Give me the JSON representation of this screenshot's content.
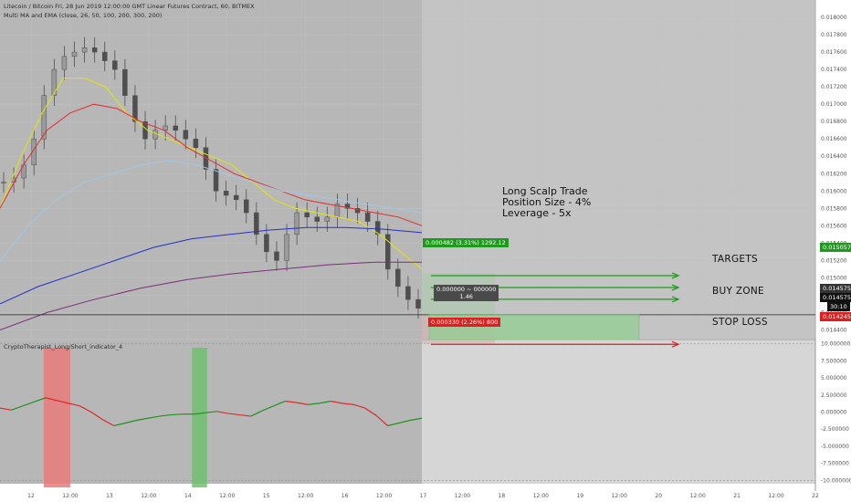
{
  "header": {
    "title": "Litecoin / Bitcoin Fri, 28 Jun 2019 12:00:00 GMT Linear Futures Contract, 60, BITMEX",
    "indicator": "Multi MA and EMA (close, 26, 50, 100, 200, 300, 200)",
    "sub_indicator": "CryptoTherapist_Long/Short_indicator_4"
  },
  "annotation": {
    "line1": "Long Scalp Trade",
    "line2": "Position Size - 4%",
    "line3": "Leverage - 5x"
  },
  "zones": {
    "targets": "TARGETS",
    "buy": "BUY ZONE",
    "stop": "STOP LOSS"
  },
  "tool_labels": {
    "profit": "0.000482 (3.31%) 1292.12",
    "center_line1": "0.000000 ~ 000000",
    "center_line2": "1.46",
    "loss": "0.000330 (2.26%) 800"
  },
  "price_tags": {
    "target": "0.015057",
    "current": "0.014575",
    "current2": "0.014575",
    "time": "30:10",
    "stop": "0.014245"
  },
  "colors": {
    "background": "#ffffff",
    "grid": "#ececec",
    "shade_past": "#b7b7b7",
    "shade_future": "#c4c4c4",
    "profit": "#1f9a1f",
    "loss": "#e01e1e",
    "buy_zone": "#8fd08f",
    "ma_yellow": "#e6e600",
    "ma_red": "#e22c2c",
    "ma_lightblue": "#9fc8e8",
    "ma_blue": "#2531c8",
    "ma_purple": "#7b2f7a",
    "osc_green": "#0f8f0f",
    "osc_red": "#e01e1e",
    "candle": "#4f4f4f"
  },
  "chart_data": [
    {
      "type": "candlestick",
      "title": "Litecoin / Bitcoin Fri, 28 Jun 2019 12:00:00 GMT Linear Futures Contract, 60, BITMEX",
      "y_axis_ticks": [
        0.018,
        0.0178,
        0.0176,
        0.0174,
        0.0172,
        0.017,
        0.0168,
        0.0166,
        0.0164,
        0.0162,
        0.016,
        0.0158,
        0.0156,
        0.0154,
        0.0152,
        0.015,
        0.0148,
        0.0146,
        0.0144
      ],
      "ylim": [
        0.0143,
        0.0182
      ],
      "x_axis_ticks": [
        "12",
        "12:00",
        "13",
        "12:00",
        "14",
        "12:00",
        "15",
        "12:00",
        "16",
        "12:00",
        "17",
        "12:00",
        "18",
        "12:00",
        "19",
        "12:00",
        "20",
        "12:00",
        "21",
        "12:00",
        "22"
      ],
      "close_series": [
        0.0161,
        0.01615,
        0.0163,
        0.0166,
        0.0171,
        0.0174,
        0.01755,
        0.0176,
        0.01765,
        0.0176,
        0.0175,
        0.0174,
        0.0171,
        0.0168,
        0.0166,
        0.0167,
        0.01675,
        0.0167,
        0.0166,
        0.0165,
        0.01625,
        0.016,
        0.01595,
        0.0159,
        0.01575,
        0.0155,
        0.0153,
        0.0152,
        0.0155,
        0.01575,
        0.0157,
        0.01565,
        0.0157,
        0.01585,
        0.0158,
        0.01575,
        0.01565,
        0.0155,
        0.0151,
        0.0149,
        0.01475,
        0.01465
      ],
      "moving_averages": [
        {
          "name": "26",
          "color": "#e6e600",
          "values": [
            0.0158,
            0.0164,
            0.0169,
            0.0173,
            0.0173,
            0.0172,
            0.0169,
            0.0167,
            0.0166,
            0.0165,
            0.0164,
            0.0163,
            0.0161,
            0.0159,
            0.0158,
            0.01575,
            0.0157,
            0.01565,
            0.0155,
            0.0153,
            0.0151
          ]
        },
        {
          "name": "50",
          "color": "#e22c2c",
          "values": [
            0.0158,
            0.0163,
            0.0167,
            0.0169,
            0.017,
            0.01695,
            0.0168,
            0.0167,
            0.0165,
            0.01635,
            0.0162,
            0.0161,
            0.016,
            0.0159,
            0.01585,
            0.0158,
            0.01575,
            0.0157,
            0.0156
          ]
        },
        {
          "name": "100",
          "color": "#9fc8e8",
          "values": [
            0.0152,
            0.0156,
            0.0159,
            0.0161,
            0.0162,
            0.0163,
            0.01635,
            0.0163,
            0.0162,
            0.0161,
            0.016,
            0.01595,
            0.0159,
            0.01585,
            0.0158,
            0.01575
          ]
        },
        {
          "name": "200",
          "color": "#2531c8",
          "values": [
            0.0147,
            0.0149,
            0.01505,
            0.0152,
            0.01535,
            0.01545,
            0.0155,
            0.01555,
            0.01558,
            0.01558,
            0.01556,
            0.01552
          ]
        },
        {
          "name": "300",
          "color": "#7b2f7a",
          "values": [
            0.0144,
            0.0146,
            0.01475,
            0.01488,
            0.01498,
            0.01505,
            0.0151,
            0.01515,
            0.01518,
            0.01518
          ]
        }
      ],
      "position": {
        "side": "long",
        "entry": 0.014575,
        "target": 0.015057,
        "stop": 0.014245,
        "profit_label": "0.000482 (3.31%) 1292.12",
        "loss_label": "0.000330 (2.26%) 800"
      }
    },
    {
      "type": "line",
      "title": "CryptoTherapist_Long/Short_indicator_4",
      "y_axis_ticks": [
        10.0,
        7.5,
        5.0,
        2.5,
        0.0,
        -2.5,
        -5.0,
        -7.5,
        -10.0
      ],
      "ylim": [
        -10.5,
        10.5
      ],
      "values": [
        0.6,
        0.3,
        0.9,
        1.5,
        2.1,
        1.7,
        1.3,
        0.9,
        0.0,
        -1.1,
        -2.0,
        -1.6,
        -1.2,
        -0.9,
        -0.6,
        -0.4,
        -0.3,
        -0.3,
        -0.1,
        0.1,
        -0.2,
        -0.4,
        -0.6,
        0.2,
        0.9,
        1.6,
        1.4,
        1.1,
        1.3,
        1.6,
        1.3,
        1.1,
        0.6,
        -0.5,
        -2.0,
        -1.6,
        -1.2,
        -0.9
      ],
      "highlight_ranges": [
        {
          "color": "red",
          "from_index": 4,
          "to_index": 6
        },
        {
          "color": "green",
          "from_index": 17,
          "to_index": 18
        }
      ]
    }
  ]
}
